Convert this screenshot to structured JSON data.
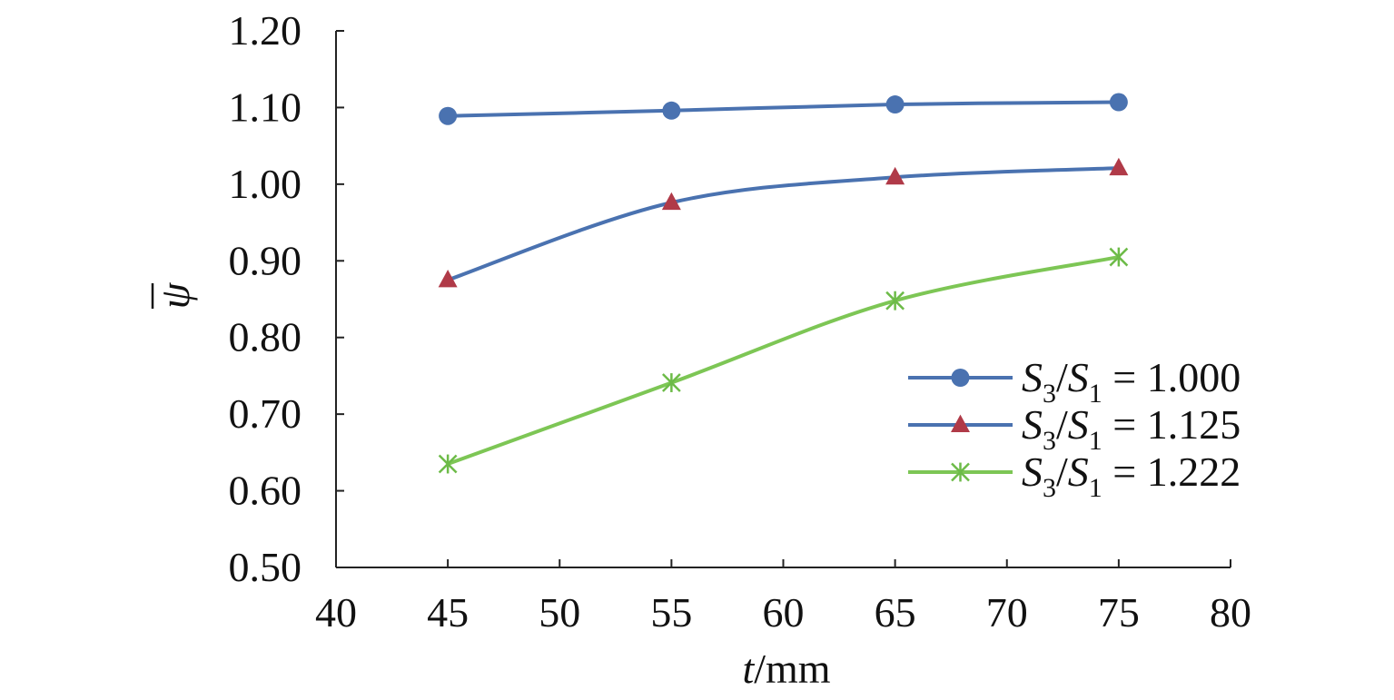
{
  "chart_data": {
    "type": "line",
    "xlabel": {
      "var": "t",
      "unit": "/mm"
    },
    "ylabel": "ψ",
    "xlim": [
      40,
      80
    ],
    "ylim": [
      0.5,
      1.2
    ],
    "xticks": [
      40,
      45,
      50,
      55,
      60,
      65,
      70,
      75,
      80
    ],
    "xtick_labels": [
      "40",
      "45",
      "50",
      "55",
      "60",
      "65",
      "70",
      "75",
      "80"
    ],
    "yticks": [
      0.5,
      0.6,
      0.7,
      0.8,
      0.9,
      1.0,
      1.1,
      1.2
    ],
    "ytick_labels": [
      "0.50",
      "0.60",
      "0.70",
      "0.80",
      "0.90",
      "1.00",
      "1.10",
      "1.20"
    ],
    "grid": false,
    "legend_position": "right",
    "x": [
      45,
      55,
      65,
      75
    ],
    "series": [
      {
        "name": "S3/S1 = 1.000",
        "label": {
          "a": "S",
          "a_sub": "3",
          "slash": "/",
          "b": "S",
          "b_sub": "1",
          "value": " = 1.000"
        },
        "values": [
          1.089,
          1.096,
          1.104,
          1.107
        ],
        "marker": "circle",
        "line_color": "#4a72b0",
        "marker_color": "#4a72b0"
      },
      {
        "name": "S3/S1 = 1.125",
        "label": {
          "a": "S",
          "a_sub": "3",
          "slash": "/",
          "b": "S",
          "b_sub": "1",
          "value": " = 1.125"
        },
        "values": [
          0.875,
          0.976,
          1.009,
          1.021
        ],
        "marker": "triangle",
        "line_color": "#4a72b0",
        "marker_color": "#b03a48"
      },
      {
        "name": "S3/S1 = 1.222",
        "label": {
          "a": "S",
          "a_sub": "3",
          "slash": "/",
          "b": "S",
          "b_sub": "1",
          "value": " = 1.222"
        },
        "values": [
          0.635,
          0.741,
          0.848,
          0.905
        ],
        "marker": "asterisk",
        "line_color": "#7dc655",
        "marker_color": "#6dbb48"
      }
    ]
  }
}
